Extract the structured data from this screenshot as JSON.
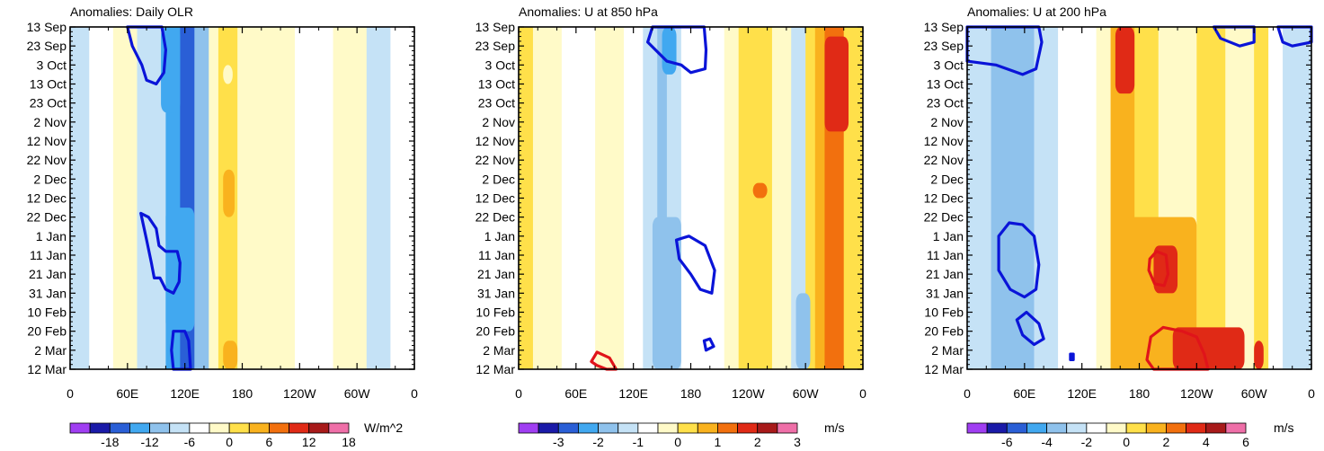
{
  "chart_data": [
    {
      "type": "heatmap",
      "title": "Anomalies: Daily OLR",
      "units": "W/m^2",
      "ylabels": [
        "13 Sep",
        "23 Sep",
        "3 Oct",
        "13 Oct",
        "23 Oct",
        "2 Nov",
        "12 Nov",
        "22 Nov",
        "2 Dec",
        "12 Dec",
        "22 Dec",
        "1 Jan",
        "11 Jan",
        "21 Jan",
        "31 Jan",
        "10 Feb",
        "20 Feb",
        "2 Mar",
        "12 Mar"
      ],
      "xlabels": [
        "0",
        "60E",
        "120E",
        "180",
        "120W",
        "60W",
        "0"
      ],
      "colorbar_ticks": [
        "-18",
        "-12",
        "-6",
        "0",
        "6",
        "12",
        "18"
      ],
      "bands": [
        {
          "lon": [
            0,
            20
          ],
          "value": -6
        },
        {
          "lon": [
            20,
            45
          ],
          "value": -3
        },
        {
          "lon": [
            45,
            70
          ],
          "value": 0
        },
        {
          "lon": [
            70,
            100
          ],
          "value": -6
        },
        {
          "lon": [
            100,
            115
          ],
          "value": -10
        },
        {
          "lon": [
            115,
            130
          ],
          "value": -14
        },
        {
          "lon": [
            130,
            145
          ],
          "value": -8
        },
        {
          "lon": [
            145,
            155
          ],
          "value": 0
        },
        {
          "lon": [
            155,
            175
          ],
          "value": 5
        },
        {
          "lon": [
            175,
            210
          ],
          "value": 1
        },
        {
          "lon": [
            210,
            235
          ],
          "value": 0
        },
        {
          "lon": [
            235,
            275
          ],
          "value": -3
        },
        {
          "lon": [
            275,
            310
          ],
          "value": 0
        },
        {
          "lon": [
            310,
            335
          ],
          "value": -4
        },
        {
          "lon": [
            335,
            360
          ],
          "value": -2
        }
      ],
      "patches": [
        {
          "lon": [
            95,
            115
          ],
          "day": [
            0,
            45
          ],
          "value": -12
        },
        {
          "lon": [
            100,
            130
          ],
          "day": [
            95,
            160
          ],
          "value": -12
        },
        {
          "lon": [
            160,
            170
          ],
          "day": [
            20,
            30
          ],
          "value": 2
        },
        {
          "lon": [
            160,
            172
          ],
          "day": [
            75,
            100
          ],
          "value": 8
        },
        {
          "lon": [
            160,
            175
          ],
          "day": [
            165,
            180
          ],
          "value": 8
        }
      ],
      "contours": [
        {
          "color": "blue",
          "points": [
            [
              60,
              0
            ],
            [
              65,
              10
            ],
            [
              75,
              20
            ],
            [
              80,
              28
            ],
            [
              90,
              30
            ],
            [
              98,
              24
            ],
            [
              100,
              12
            ],
            [
              96,
              0
            ]
          ]
        },
        {
          "color": "blue",
          "points": [
            [
              74,
              98
            ],
            [
              82,
              100
            ],
            [
              90,
              106
            ],
            [
              93,
              115
            ],
            [
              100,
              118
            ],
            [
              112,
              118
            ],
            [
              115,
              124
            ],
            [
              114,
              134
            ],
            [
              108,
              140
            ],
            [
              100,
              138
            ],
            [
              94,
              132
            ],
            [
              88,
              132
            ],
            [
              85,
              124
            ],
            [
              80,
              112
            ]
          ]
        },
        {
          "color": "blue",
          "points": [
            [
              108,
              160
            ],
            [
              120,
              160
            ],
            [
              124,
              165
            ],
            [
              126,
              180
            ],
            [
              108,
              180
            ],
            [
              106,
              170
            ]
          ]
        }
      ]
    },
    {
      "type": "heatmap",
      "title": "Anomalies: U at 850 hPa",
      "units": "m/s",
      "ylabels": [
        "13 Sep",
        "23 Sep",
        "3 Oct",
        "13 Oct",
        "23 Oct",
        "2 Nov",
        "12 Nov",
        "22 Nov",
        "2 Dec",
        "12 Dec",
        "22 Dec",
        "1 Jan",
        "11 Jan",
        "21 Jan",
        "31 Jan",
        "10 Feb",
        "20 Feb",
        "2 Mar",
        "12 Mar"
      ],
      "xlabels": [
        "0",
        "60E",
        "120E",
        "180",
        "120W",
        "60W",
        "0"
      ],
      "colorbar_ticks": [
        "-3",
        "-2",
        "-1",
        "0",
        "1",
        "2",
        "3"
      ],
      "bands": [
        {
          "lon": [
            0,
            15
          ],
          "value": 0.7
        },
        {
          "lon": [
            15,
            45
          ],
          "value": 0.2
        },
        {
          "lon": [
            45,
            80
          ],
          "value": -0.3
        },
        {
          "lon": [
            80,
            110
          ],
          "value": 0.2
        },
        {
          "lon": [
            110,
            130
          ],
          "value": -0.2
        },
        {
          "lon": [
            130,
            145
          ],
          "value": -0.7
        },
        {
          "lon": [
            145,
            155
          ],
          "value": -1.2
        },
        {
          "lon": [
            155,
            170
          ],
          "value": -0.7
        },
        {
          "lon": [
            170,
            215
          ],
          "value": -0.3
        },
        {
          "lon": [
            215,
            230
          ],
          "value": 0.3
        },
        {
          "lon": [
            230,
            265
          ],
          "value": 0.8
        },
        {
          "lon": [
            265,
            285
          ],
          "value": 0.2
        },
        {
          "lon": [
            285,
            300
          ],
          "value": -0.7
        },
        {
          "lon": [
            300,
            310
          ],
          "value": 0.5
        },
        {
          "lon": [
            310,
            320
          ],
          "value": 1.2
        },
        {
          "lon": [
            320,
            340
          ],
          "value": 1.7
        },
        {
          "lon": [
            340,
            360
          ],
          "value": 0.8
        }
      ],
      "patches": [
        {
          "lon": [
            150,
            165
          ],
          "day": [
            0,
            25
          ],
          "value": -1.7
        },
        {
          "lon": [
            320,
            345
          ],
          "day": [
            5,
            55
          ],
          "value": 2.2
        },
        {
          "lon": [
            245,
            260
          ],
          "day": [
            82,
            90
          ],
          "value": 1.7
        },
        {
          "lon": [
            140,
            170
          ],
          "day": [
            100,
            180
          ],
          "value": -1.2
        },
        {
          "lon": [
            290,
            305
          ],
          "day": [
            140,
            180
          ],
          "value": -1.2
        }
      ],
      "contours": [
        {
          "color": "blue",
          "points": [
            [
              140,
              0
            ],
            [
              135,
              8
            ],
            [
              155,
              18
            ],
            [
              170,
              20
            ],
            [
              180,
              24
            ],
            [
              195,
              22
            ],
            [
              196,
              12
            ],
            [
              194,
              0
            ]
          ]
        },
        {
          "color": "blue",
          "points": [
            [
              165,
              112
            ],
            [
              178,
              110
            ],
            [
              195,
              115
            ],
            [
              205,
              128
            ],
            [
              202,
              140
            ],
            [
              190,
              138
            ],
            [
              180,
              130
            ],
            [
              168,
              122
            ]
          ]
        },
        {
          "color": "blue",
          "points": [
            [
              194,
              165
            ],
            [
              200,
              164
            ],
            [
              204,
              168
            ],
            [
              196,
              170
            ]
          ]
        },
        {
          "color": "red",
          "points": [
            [
              76,
              176
            ],
            [
              82,
              171
            ],
            [
              95,
              174
            ],
            [
              102,
              180
            ],
            [
              92,
              180
            ],
            [
              82,
              178
            ]
          ]
        }
      ]
    },
    {
      "type": "heatmap",
      "title": "Anomalies: U at 200 hPa",
      "units": "m/s",
      "ylabels": [
        "13 Sep",
        "23 Sep",
        "3 Oct",
        "13 Oct",
        "23 Oct",
        "2 Nov",
        "12 Nov",
        "22 Nov",
        "2 Dec",
        "12 Dec",
        "22 Dec",
        "1 Jan",
        "11 Jan",
        "21 Jan",
        "31 Jan",
        "10 Feb",
        "20 Feb",
        "2 Mar",
        "12 Mar"
      ],
      "xlabels": [
        "0",
        "60E",
        "120E",
        "180",
        "120W",
        "60W",
        "0"
      ],
      "colorbar_ticks": [
        "-6",
        "-4",
        "-2",
        "0",
        "2",
        "4",
        "6"
      ],
      "bands": [
        {
          "lon": [
            0,
            25
          ],
          "value": -1.3
        },
        {
          "lon": [
            25,
            70
          ],
          "value": -2.2
        },
        {
          "lon": [
            70,
            95
          ],
          "value": -1.3
        },
        {
          "lon": [
            95,
            135
          ],
          "value": -0.5
        },
        {
          "lon": [
            135,
            150
          ],
          "value": 0.8
        },
        {
          "lon": [
            150,
            175
          ],
          "value": 2.5
        },
        {
          "lon": [
            175,
            200
          ],
          "value": 1.2
        },
        {
          "lon": [
            200,
            240
          ],
          "value": 0.5
        },
        {
          "lon": [
            240,
            270
          ],
          "value": 1.2
        },
        {
          "lon": [
            270,
            300
          ],
          "value": 0.3
        },
        {
          "lon": [
            300,
            315
          ],
          "value": 1.2
        },
        {
          "lon": [
            315,
            330
          ],
          "value": -0.5
        },
        {
          "lon": [
            330,
            360
          ],
          "value": -1.3
        }
      ],
      "patches": [
        {
          "lon": [
            155,
            175
          ],
          "day": [
            0,
            35
          ],
          "value": 4.0
        },
        {
          "lon": [
            165,
            240
          ],
          "day": [
            100,
            180
          ],
          "value": 2.8
        },
        {
          "lon": [
            195,
            220
          ],
          "day": [
            115,
            140
          ],
          "value": 4.5
        },
        {
          "lon": [
            215,
            290
          ],
          "day": [
            158,
            180
          ],
          "value": 4.0
        },
        {
          "lon": [
            300,
            310
          ],
          "day": [
            165,
            180
          ],
          "value": 4.0
        }
      ],
      "contours": [
        {
          "color": "blue",
          "points": [
            [
              0,
              18
            ],
            [
              30,
              20
            ],
            [
              58,
              25
            ],
            [
              72,
              22
            ],
            [
              78,
              8
            ],
            [
              75,
              0
            ],
            [
              0,
              0
            ]
          ]
        },
        {
          "color": "blue",
          "points": [
            [
              258,
              0
            ],
            [
              265,
              6
            ],
            [
              285,
              10
            ],
            [
              300,
              8
            ],
            [
              300,
              0
            ]
          ]
        },
        {
          "color": "blue",
          "points": [
            [
              325,
              0
            ],
            [
              330,
              8
            ],
            [
              340,
              10
            ],
            [
              360,
              8
            ],
            [
              360,
              0
            ]
          ]
        },
        {
          "color": "blue",
          "points": [
            [
              33,
              110
            ],
            [
              44,
              103
            ],
            [
              58,
              104
            ],
            [
              70,
              110
            ],
            [
              75,
              125
            ],
            [
              72,
              138
            ],
            [
              60,
              142
            ],
            [
              45,
              138
            ],
            [
              33,
              128
            ]
          ]
        },
        {
          "color": "blue",
          "points": [
            [
              52,
              154
            ],
            [
              62,
              150
            ],
            [
              75,
              156
            ],
            [
              80,
              164
            ],
            [
              70,
              167
            ],
            [
              58,
              162
            ]
          ]
        },
        {
          "color": "blue",
          "points": [
            [
              108,
              172
            ],
            [
              111,
              172
            ],
            [
              111,
              175
            ],
            [
              108,
              175
            ]
          ]
        },
        {
          "color": "red",
          "points": [
            [
              191,
              122
            ],
            [
              198,
              118
            ],
            [
              208,
              120
            ],
            [
              210,
              130
            ],
            [
              206,
              136
            ],
            [
              196,
              135
            ],
            [
              190,
              128
            ]
          ]
        },
        {
          "color": "red",
          "points": [
            [
              188,
              175
            ],
            [
              192,
              163
            ],
            [
              205,
              158
            ],
            [
              225,
              160
            ],
            [
              240,
              163
            ],
            [
              248,
              172
            ],
            [
              252,
              180
            ],
            [
              195,
              180
            ]
          ]
        }
      ]
    }
  ]
}
